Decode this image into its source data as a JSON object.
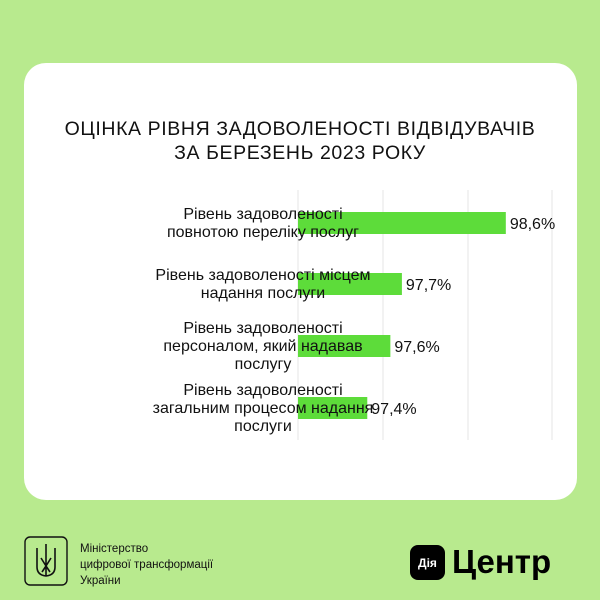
{
  "chart_data": {
    "type": "bar",
    "orientation": "horizontal",
    "title_lines": [
      "ОЦІНКА РІВНЯ ЗАДОВОЛЕНОСТІ ВІДВІДУВАЧІВ",
      "ЗА БЕРЕЗЕНЬ 2023 РОКУ"
    ],
    "categories": [
      [
        "Рівень задоволеності",
        "повнотою переліку послуг"
      ],
      [
        "Рівень задоволеності місцем",
        "надання послуги"
      ],
      [
        "Рівень задоволеності",
        "персоналом, який надавав",
        "послугу"
      ],
      [
        "Рівень задоволеності",
        "загальним процесом надання",
        "послуги"
      ]
    ],
    "values": [
      98.6,
      97.7,
      97.6,
      97.4
    ],
    "value_labels": [
      "98,6%",
      "97,7%",
      "97,6%",
      "97,4%"
    ],
    "xlim": [
      96.8,
      99.0
    ],
    "grid": true,
    "bar_color": "#5ddc3a"
  },
  "footer": {
    "ministry_lines": [
      "Міністерство",
      "цифрової трансформації",
      "України"
    ],
    "brand_badge": "Дія",
    "brand_text": "Центр"
  },
  "colors": {
    "background": "#b8ea8e",
    "card": "#ffffff",
    "bar": "#5ddc3a",
    "grid": "#e4e4e4"
  }
}
